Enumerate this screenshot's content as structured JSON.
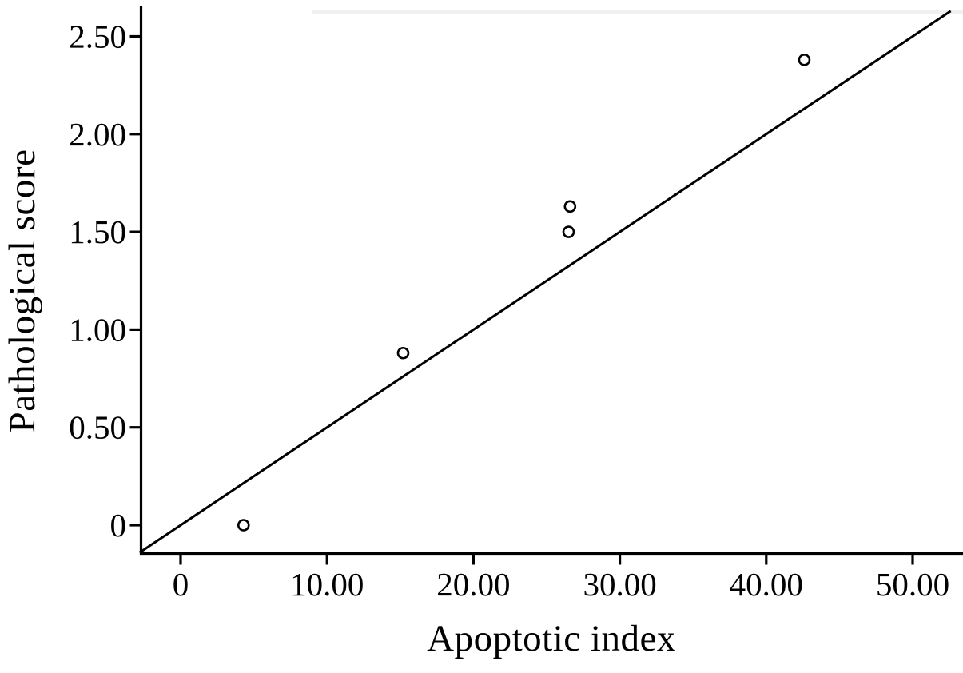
{
  "figure": {
    "background_color": "#ffffff",
    "axis_color": "#000000"
  },
  "chart_data": {
    "type": "scatter",
    "title": "",
    "xlabel": "Apoptotic index",
    "ylabel": "Pathological score",
    "xlim": [
      -2.8,
      53.4
    ],
    "ylim": [
      -0.14,
      2.65
    ],
    "grid": false,
    "legend": "none",
    "x_ticks": [
      {
        "value": 0,
        "label": "0"
      },
      {
        "value": 10,
        "label": "10.00"
      },
      {
        "value": 20,
        "label": "20.00"
      },
      {
        "value": 30,
        "label": "30.00"
      },
      {
        "value": 40,
        "label": "40.00"
      },
      {
        "value": 50,
        "label": "50.00"
      }
    ],
    "y_ticks": [
      {
        "value": 0.0,
        "label": "0"
      },
      {
        "value": 0.5,
        "label": "0.50"
      },
      {
        "value": 1.0,
        "label": "1.00"
      },
      {
        "value": 1.5,
        "label": "1.50"
      },
      {
        "value": 2.0,
        "label": "2.00"
      },
      {
        "value": 2.5,
        "label": "2.50"
      }
    ],
    "points": [
      {
        "x": 4.3,
        "y": 0.0
      },
      {
        "x": 15.2,
        "y": 0.88
      },
      {
        "x": 26.5,
        "y": 1.5
      },
      {
        "x": 26.6,
        "y": 1.63
      },
      {
        "x": 42.6,
        "y": 2.38
      }
    ],
    "fit_line": {
      "slope": 0.05,
      "intercept": 0.0,
      "x_start": -2.8,
      "x_end": 52.6,
      "color": "#000000"
    },
    "marker": {
      "shape": "open-circle",
      "radius_px": 6.5,
      "stroke_color": "#000000",
      "fill_color": "#ffffff"
    }
  }
}
